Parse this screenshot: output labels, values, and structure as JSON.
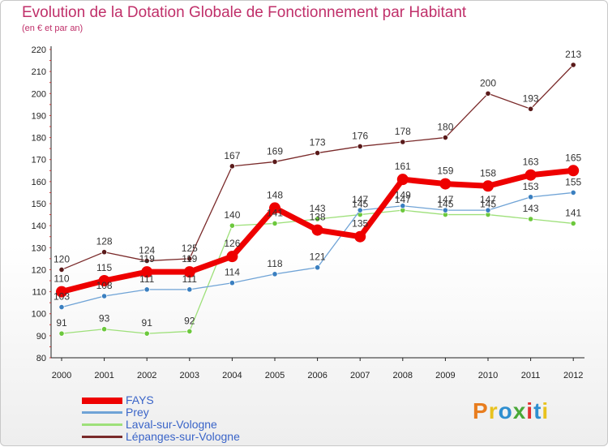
{
  "header": {
    "title": "Evolution de la Dotation Globale de Fonctionnement par Habitant",
    "subtitle": "(en € et par an)"
  },
  "logo": {
    "text": "Proxiti",
    "colors": [
      "#e87d1e",
      "#e8c21e",
      "#2f8fd0",
      "#4aa838",
      "#e03030",
      "#2f8fd0",
      "#e8c21e"
    ]
  },
  "chart_data": {
    "type": "line",
    "title": "Evolution de la Dotation Globale de Fonctionnement par Habitant",
    "subtitle": "(en € et par an)",
    "xlabel": "",
    "ylabel": "",
    "x": [
      "2000",
      "2001",
      "2002",
      "2003",
      "2004",
      "2005",
      "2006",
      "2007",
      "2008",
      "2009",
      "2010",
      "2011",
      "2012"
    ],
    "ylim": [
      80,
      220
    ],
    "yticks": [
      80,
      90,
      100,
      110,
      120,
      130,
      140,
      150,
      160,
      170,
      180,
      190,
      200,
      210,
      220
    ],
    "grid": false,
    "legend_position": "bottom-left",
    "series": [
      {
        "name": "Lépanges-sur-Vologne",
        "color": "#7a2a2a",
        "marker": "#5a1a1a",
        "values": [
          120,
          128,
          124,
          125,
          167,
          169,
          173,
          176,
          178,
          180,
          200,
          193,
          213
        ]
      },
      {
        "name": "Laval-sur-Vologne",
        "color": "#9ee07a",
        "marker": "#6cc83c",
        "values": [
          91,
          93,
          91,
          92,
          140,
          141,
          143,
          145,
          147,
          145,
          145,
          143,
          141
        ]
      },
      {
        "name": "Prey",
        "color": "#6fa3d6",
        "marker": "#3a7fc0",
        "values": [
          103,
          108,
          111,
          111,
          114,
          118,
          121,
          147,
          149,
          147,
          147,
          153,
          155
        ]
      },
      {
        "name": "FAYS",
        "color": "#ee0000",
        "marker": "#ee0000",
        "values": [
          110,
          115,
          119,
          119,
          126,
          148,
          138,
          135,
          161,
          159,
          158,
          163,
          165
        ]
      }
    ],
    "legend_order": [
      "FAYS",
      "Prey",
      "Laval-sur-Vologne",
      "Lépanges-sur-Vologne"
    ]
  }
}
